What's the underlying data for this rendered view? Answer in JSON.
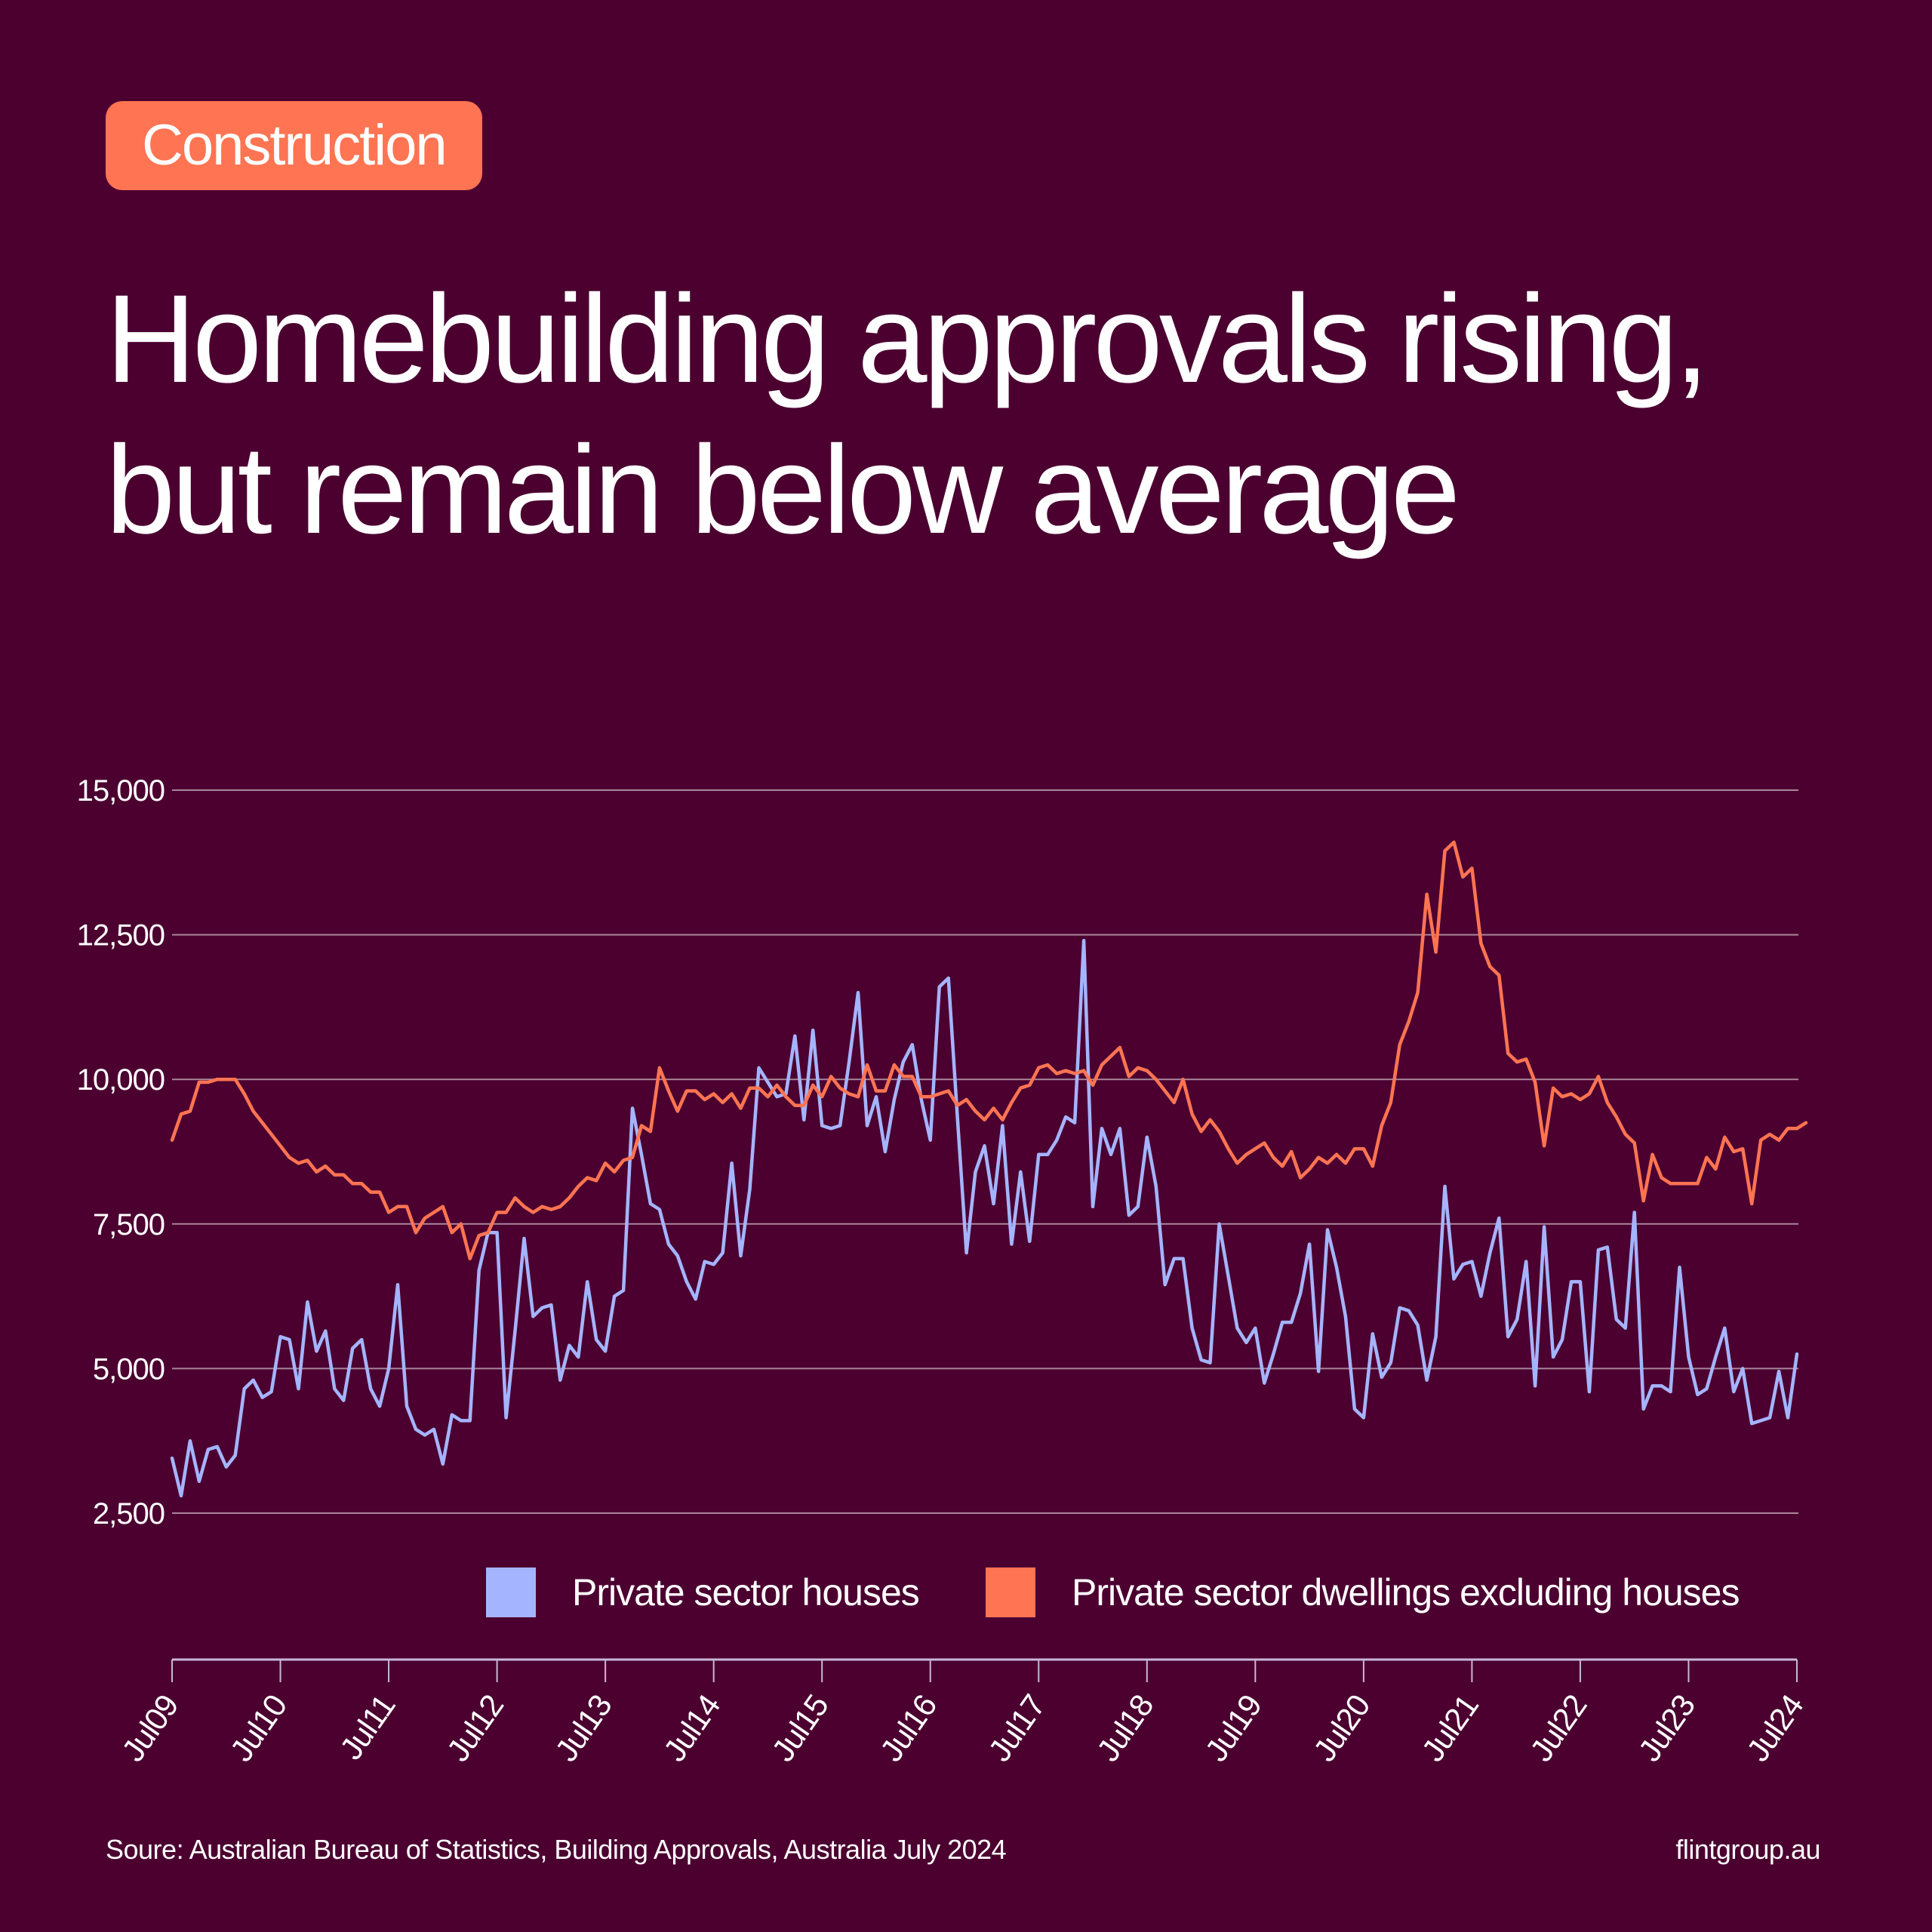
{
  "tag": "Construction",
  "title_line1": "Homebuilding approvals rising,",
  "title_line2": "but remain below average",
  "source": "Soure: Australian Bureau of Statistics, Building Approvals, Australia July 2024",
  "site": "flintgroup.au",
  "colors": {
    "background": "#4b0030",
    "houses": "#a5b4ff",
    "dwellings": "#ff7452",
    "grid": "#a8879b",
    "tag": "#ff7452"
  },
  "chart_data": {
    "type": "line",
    "title": "Homebuilding approvals rising, but remain below average",
    "xlabel": "",
    "ylabel": "",
    "ylim": [
      2500,
      15000
    ],
    "yticks": [
      2500,
      5000,
      7500,
      10000,
      12500,
      15000
    ],
    "ytick_labels": [
      "2,500",
      "5,000",
      "7,500",
      "10,000",
      "12,500",
      "15,000"
    ],
    "xtick_labels": [
      "Jul09",
      "Jul10",
      "Jul11",
      "Jul12",
      "Jul13",
      "Jul14",
      "Jul15",
      "Jul16",
      "Jul17",
      "Jul18",
      "Jul19",
      "Jul20",
      "Jul21",
      "Jul22",
      "Jul23",
      "Jul24"
    ],
    "x_start": "Jul 2009",
    "x_end": "Jul 2024",
    "frequency": "monthly",
    "grid": true,
    "legend_position": "bottom-right",
    "series": [
      {
        "name": "Private sector houses",
        "color": "#a5b4ff",
        "values": [
          3450,
          2800,
          3750,
          3050,
          3600,
          3650,
          3300,
          3500,
          4650,
          4800,
          4500,
          4600,
          5550,
          5500,
          4650,
          6150,
          5300,
          5650,
          4650,
          4450,
          5350,
          5500,
          4650,
          4350,
          5000,
          6450,
          4350,
          3950,
          3850,
          3950,
          3350,
          4200,
          4100,
          4100,
          6700,
          7350,
          7350,
          4150,
          5650,
          7250,
          5900,
          6050,
          6100,
          4800,
          5400,
          5200,
          6500,
          5500,
          5300,
          6250,
          6350,
          9500,
          8700,
          7850,
          7750,
          7150,
          6950,
          6500,
          6200,
          6850,
          6800,
          7000,
          8550,
          6950,
          8100,
          10200,
          9950,
          9700,
          9750,
          10750,
          9300,
          10850,
          9200,
          9150,
          9200,
          10300,
          11500,
          9200,
          9700,
          8750,
          9650,
          10300,
          10600,
          9650,
          8950,
          11600,
          11750,
          9350,
          7000,
          8400,
          8850,
          7850,
          9200,
          7150,
          8400,
          7200,
          8700,
          8700,
          8950,
          9350,
          9250,
          12400,
          7800,
          9150,
          8700,
          9150,
          7650,
          7800,
          9000,
          8150,
          6450,
          6900,
          6900,
          5700,
          5150,
          5100,
          7500,
          6600,
          5700,
          5450,
          5700,
          4750,
          5250,
          5800,
          5800,
          6300,
          7150,
          4950,
          7400,
          6750,
          5900,
          4300,
          4150,
          5600,
          4850,
          5100,
          6050,
          6000,
          5750,
          4800,
          5550,
          8150,
          6550,
          6800,
          6850,
          6250,
          7000,
          7600,
          5550,
          5850,
          6850,
          4700,
          7450,
          5200,
          5500,
          6500,
          6500,
          4600,
          7050,
          7100,
          5850,
          5700,
          7700,
          4300,
          4700,
          4700,
          4600,
          6750,
          5200,
          4550,
          4650,
          5200,
          5700,
          4600,
          5000,
          4050,
          4100,
          4150,
          4950,
          4150,
          5250
        ]
      },
      {
        "name": "Private sector dwellings excluding houses",
        "color": "#ff7452",
        "values": [
          8950,
          9400,
          9450,
          9950,
          9950,
          10000,
          10000,
          10000,
          9750,
          9450,
          9250,
          9050,
          8850,
          8650,
          8550,
          8600,
          8400,
          8500,
          8350,
          8350,
          8200,
          8200,
          8050,
          8050,
          7700,
          7800,
          7800,
          7350,
          7600,
          7700,
          7800,
          7350,
          7500,
          6900,
          7300,
          7350,
          7700,
          7700,
          7950,
          7800,
          7700,
          7800,
          7750,
          7800,
          7950,
          8150,
          8300,
          8250,
          8550,
          8400,
          8600,
          8650,
          9200,
          9100,
          10200,
          9800,
          9450,
          9800,
          9800,
          9650,
          9750,
          9600,
          9750,
          9500,
          9850,
          9850,
          9700,
          9900,
          9700,
          9550,
          9550,
          9900,
          9700,
          10050,
          9850,
          9750,
          9700,
          10250,
          9800,
          9800,
          10250,
          10050,
          10050,
          9700,
          9700,
          9750,
          9800,
          9550,
          9650,
          9450,
          9300,
          9500,
          9300,
          9600,
          9850,
          9900,
          10200,
          10250,
          10100,
          10150,
          10100,
          10150,
          9900,
          10250,
          10400,
          10550,
          10050,
          10200,
          10150,
          10000,
          9800,
          9600,
          10000,
          9400,
          9100,
          9300,
          9100,
          8800,
          8550,
          8700,
          8800,
          8900,
          8650,
          8500,
          8750,
          8300,
          8450,
          8650,
          8550,
          8700,
          8550,
          8800,
          8800,
          8500,
          9200,
          9600,
          10600,
          11000,
          11500,
          13200,
          12200,
          13950,
          14100,
          13500,
          13650,
          12350,
          11950,
          11800,
          10450,
          10300,
          10350,
          9950,
          8850,
          9850,
          9700,
          9750,
          9650,
          9750,
          10050,
          9600,
          9350,
          9050,
          8900,
          7900,
          8700,
          8300,
          8200,
          8200,
          8200,
          8200,
          8650,
          8450,
          9000,
          8750,
          8800,
          7850,
          8950,
          9050,
          8950,
          9150,
          9150,
          9250
        ]
      }
    ]
  }
}
